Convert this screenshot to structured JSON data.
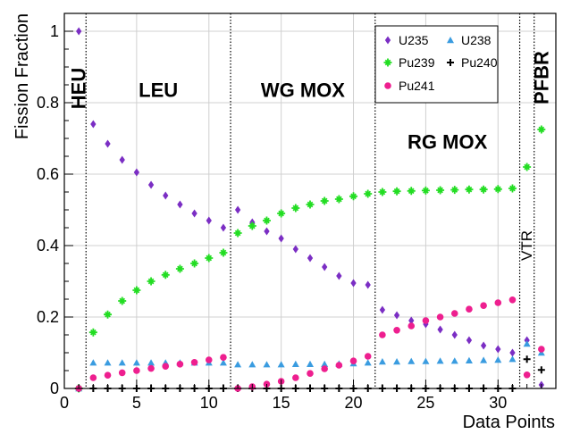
{
  "chart_data": {
    "type": "scatter",
    "xlabel": "Data Points",
    "ylabel": "Fission Fraction",
    "xlim": [
      0,
      34
    ],
    "ylim": [
      0,
      1.05
    ],
    "x_ticks": [
      0,
      5,
      10,
      15,
      20,
      25,
      30
    ],
    "y_ticks": [
      0,
      0.2,
      0.4,
      0.6,
      0.8,
      1
    ],
    "x_tick_labels": [
      "0",
      "5",
      "10",
      "15",
      "20",
      "25",
      "30"
    ],
    "y_tick_labels": [
      "0",
      "0.2",
      "0.4",
      "0.6",
      "0.8",
      "1"
    ],
    "grid": true,
    "legend_position": "top-right",
    "region_boundaries": [
      1.5,
      11.5,
      21.5,
      31.5,
      32.5
    ],
    "regions": [
      {
        "label": "HEU",
        "x": 1,
        "y": 0.84,
        "vertical": true,
        "size": "large"
      },
      {
        "label": "LEU",
        "x": 6.5,
        "y": 0.835,
        "vertical": false,
        "size": "large"
      },
      {
        "label": "WG MOX",
        "x": 16.5,
        "y": 0.835,
        "vertical": false,
        "size": "large"
      },
      {
        "label": "RG MOX",
        "x": 26.5,
        "y": 0.69,
        "vertical": false,
        "size": "large"
      },
      {
        "label": "VTR",
        "x": 32,
        "y": 0.4,
        "vertical": true,
        "size": "small"
      },
      {
        "label": "PFBR",
        "x": 33,
        "y": 0.87,
        "vertical": true,
        "size": "large"
      }
    ],
    "series": [
      {
        "name": "U235",
        "marker": "diamond",
        "color": "#7b2ec4",
        "x": [
          1,
          2,
          3,
          4,
          5,
          6,
          7,
          8,
          9,
          10,
          11,
          12,
          13,
          14,
          15,
          16,
          17,
          18,
          19,
          20,
          21,
          22,
          23,
          24,
          25,
          26,
          27,
          28,
          29,
          30,
          31,
          32,
          33
        ],
        "y": [
          1.0,
          0.74,
          0.685,
          0.64,
          0.605,
          0.57,
          0.54,
          0.515,
          0.49,
          0.47,
          0.45,
          0.5,
          0.465,
          0.44,
          0.42,
          0.39,
          0.365,
          0.34,
          0.315,
          0.295,
          0.29,
          0.22,
          0.205,
          0.19,
          0.18,
          0.165,
          0.15,
          0.135,
          0.12,
          0.11,
          0.1,
          0.135,
          0.01
        ]
      },
      {
        "name": "U238",
        "marker": "triangle",
        "color": "#3a9ce0",
        "x": [
          1,
          2,
          3,
          4,
          5,
          6,
          7,
          8,
          9,
          10,
          11,
          12,
          13,
          14,
          15,
          16,
          17,
          18,
          19,
          20,
          21,
          22,
          23,
          24,
          25,
          26,
          27,
          28,
          29,
          30,
          31,
          32,
          33
        ],
        "y": [
          0.0,
          0.072,
          0.072,
          0.072,
          0.072,
          0.072,
          0.072,
          0.072,
          0.072,
          0.072,
          0.072,
          0.067,
          0.067,
          0.067,
          0.067,
          0.068,
          0.068,
          0.068,
          0.069,
          0.07,
          0.072,
          0.075,
          0.075,
          0.076,
          0.076,
          0.077,
          0.077,
          0.078,
          0.079,
          0.08,
          0.082,
          0.125,
          0.1
        ]
      },
      {
        "name": "Pu239",
        "marker": "star",
        "color": "#22dd22",
        "x": [
          1,
          2,
          3,
          4,
          5,
          6,
          7,
          8,
          9,
          10,
          11,
          12,
          13,
          14,
          15,
          16,
          17,
          18,
          19,
          20,
          21,
          22,
          23,
          24,
          25,
          26,
          27,
          28,
          29,
          30,
          31,
          32,
          33
        ],
        "y": [
          0.0,
          0.157,
          0.207,
          0.245,
          0.275,
          0.3,
          0.318,
          0.335,
          0.35,
          0.365,
          0.38,
          0.435,
          0.455,
          0.47,
          0.49,
          0.505,
          0.515,
          0.525,
          0.53,
          0.538,
          0.545,
          0.55,
          0.552,
          0.553,
          0.554,
          0.555,
          0.556,
          0.557,
          0.557,
          0.558,
          0.56,
          0.62,
          0.725
        ]
      },
      {
        "name": "Pu240",
        "marker": "plus",
        "color": "#000000",
        "x": [
          1,
          2,
          3,
          4,
          5,
          6,
          7,
          8,
          9,
          10,
          11,
          12,
          13,
          14,
          15,
          16,
          17,
          18,
          19,
          20,
          21,
          22,
          23,
          24,
          25,
          26,
          27,
          28,
          29,
          30,
          31,
          32,
          33
        ],
        "y": [
          0,
          0,
          0,
          0,
          0,
          0,
          0,
          0,
          0,
          0,
          0,
          0,
          0,
          0,
          0,
          0,
          0,
          0,
          0,
          0,
          0,
          0,
          0,
          0,
          0,
          0,
          0,
          0,
          0,
          0,
          0,
          0.082,
          0.052
        ]
      },
      {
        "name": "Pu241",
        "marker": "circle",
        "color": "#ee1f8f",
        "x": [
          1,
          2,
          3,
          4,
          5,
          6,
          7,
          8,
          9,
          10,
          11,
          12,
          13,
          14,
          15,
          16,
          17,
          18,
          19,
          20,
          21,
          22,
          23,
          24,
          25,
          26,
          27,
          28,
          29,
          30,
          31,
          32,
          33
        ],
        "y": [
          0.0,
          0.03,
          0.037,
          0.044,
          0.05,
          0.056,
          0.062,
          0.068,
          0.073,
          0.08,
          0.087,
          0.0,
          0.005,
          0.012,
          0.02,
          0.03,
          0.042,
          0.055,
          0.065,
          0.077,
          0.09,
          0.15,
          0.163,
          0.175,
          0.19,
          0.2,
          0.21,
          0.222,
          0.232,
          0.24,
          0.248,
          0.038,
          0.11
        ]
      }
    ]
  }
}
